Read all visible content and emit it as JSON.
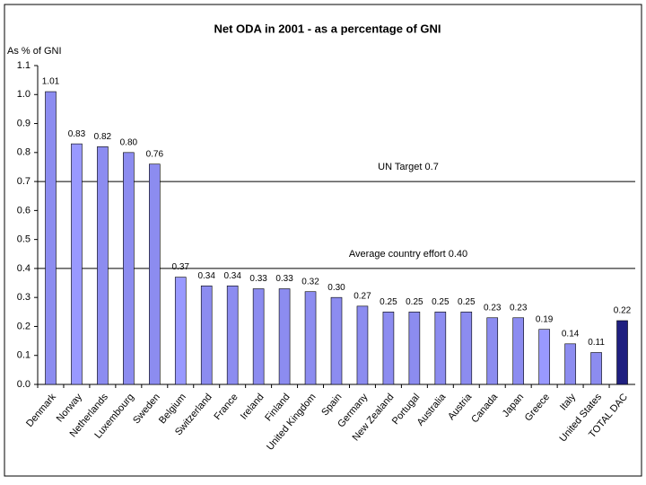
{
  "chart_data": {
    "type": "bar",
    "title": "Net ODA in 2001 - as a percentage of GNI",
    "y_label": "As % of GNI",
    "categories": [
      "Denmark",
      "Norway",
      "Netherlands",
      "Luxembourg",
      "Sweden",
      "Belgium",
      "Switzerland",
      "France",
      "Ireland",
      "Finland",
      "United Kingdom",
      "Spain",
      "Germany",
      "New Zealand",
      "Portugal",
      "Australia",
      "Austria",
      "Canada",
      "Japan",
      "Greece",
      "Italy",
      "United States",
      "TOTAL DAC"
    ],
    "values": [
      1.01,
      0.83,
      0.82,
      0.8,
      0.76,
      0.37,
      0.34,
      0.34,
      0.33,
      0.33,
      0.32,
      0.3,
      0.27,
      0.25,
      0.25,
      0.25,
      0.25,
      0.23,
      0.23,
      0.19,
      0.14,
      0.11,
      0.22
    ],
    "value_labels": [
      "1.01",
      "0.83",
      "0.82",
      "0.80",
      "0.76",
      "0.37",
      "0.34",
      "0.34",
      "0.33",
      "0.33",
      "0.32",
      "0.30",
      "0.27",
      "0.25",
      "0.25",
      "0.25",
      "0.25",
      "0.23",
      "0.23",
      "0.19",
      "0.14",
      "0.11",
      "0.22"
    ],
    "colors": [
      "#8c8cf0",
      "#9999ff",
      "#8c8cf0",
      "#8c8cf0",
      "#8c8cf0",
      "#9999ff",
      "#8c8cf0",
      "#8c8cf0",
      "#8c8cf0",
      "#8c8cf0",
      "#8c8cf0",
      "#8c8cf0",
      "#8c8cf0",
      "#8c8cf0",
      "#8c8cf0",
      "#8c8cf0",
      "#8c8cf0",
      "#8c8cf0",
      "#8c8cf0",
      "#9999ff",
      "#8c8cf0",
      "#8c8cf0",
      "#1f1f80"
    ],
    "ylim": [
      0,
      1.1
    ],
    "yticks": [
      {
        "value": 0,
        "label": "0.0"
      },
      0.1,
      0.2,
      0.3,
      0.4,
      0.5,
      0.6,
      0.7,
      0.8,
      0.9,
      {
        "value": 1,
        "label": "1.0"
      },
      1.1
    ],
    "reference_lines": [
      {
        "value": 0.7,
        "label": "UN Target 0.7"
      },
      {
        "value": 0.4,
        "label": "Average country effort 0.40"
      }
    ]
  }
}
